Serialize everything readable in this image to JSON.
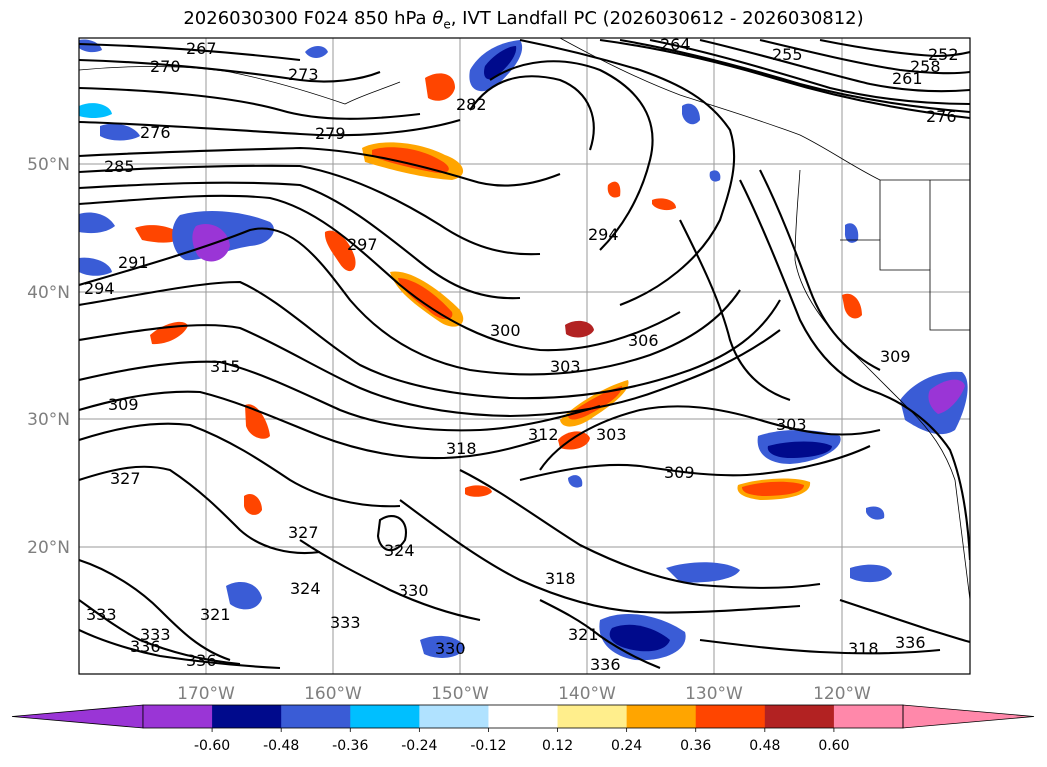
{
  "title": {
    "prefix": "2026030300 F024 850 hPa ",
    "theta": "θ",
    "sub": "e",
    "suffix": ", IVT Landfall PC (2026030612 - 2026030812)"
  },
  "map": {
    "lon_labels": [
      "170°W",
      "160°W",
      "150°W",
      "140°W",
      "130°W",
      "120°W"
    ],
    "lat_labels": [
      "50°N",
      "40°N",
      "30°N",
      "20°N"
    ],
    "contour_labels": [
      "267",
      "270",
      "273",
      "276",
      "279",
      "282",
      "285",
      "291",
      "294",
      "297",
      "300",
      "303",
      "306",
      "309",
      "312",
      "315",
      "318",
      "321",
      "324",
      "327",
      "330",
      "333",
      "336",
      "252",
      "255",
      "258",
      "261",
      "264"
    ]
  },
  "colorbar": {
    "colors": [
      "#9a35d6",
      "#9a35d6",
      "#000a8c",
      "#3a5cd6",
      "#00bfff",
      "#b0e2ff",
      "#ffffff",
      "#ffee8c",
      "#ffa500",
      "#ff4500",
      "#b22222",
      "#ff88aa",
      "#ff88aa"
    ],
    "ticks": [
      "-0.60",
      "-0.48",
      "-0.36",
      "-0.24",
      "-0.12",
      "0.12",
      "0.24",
      "0.36",
      "0.48",
      "0.60"
    ]
  }
}
